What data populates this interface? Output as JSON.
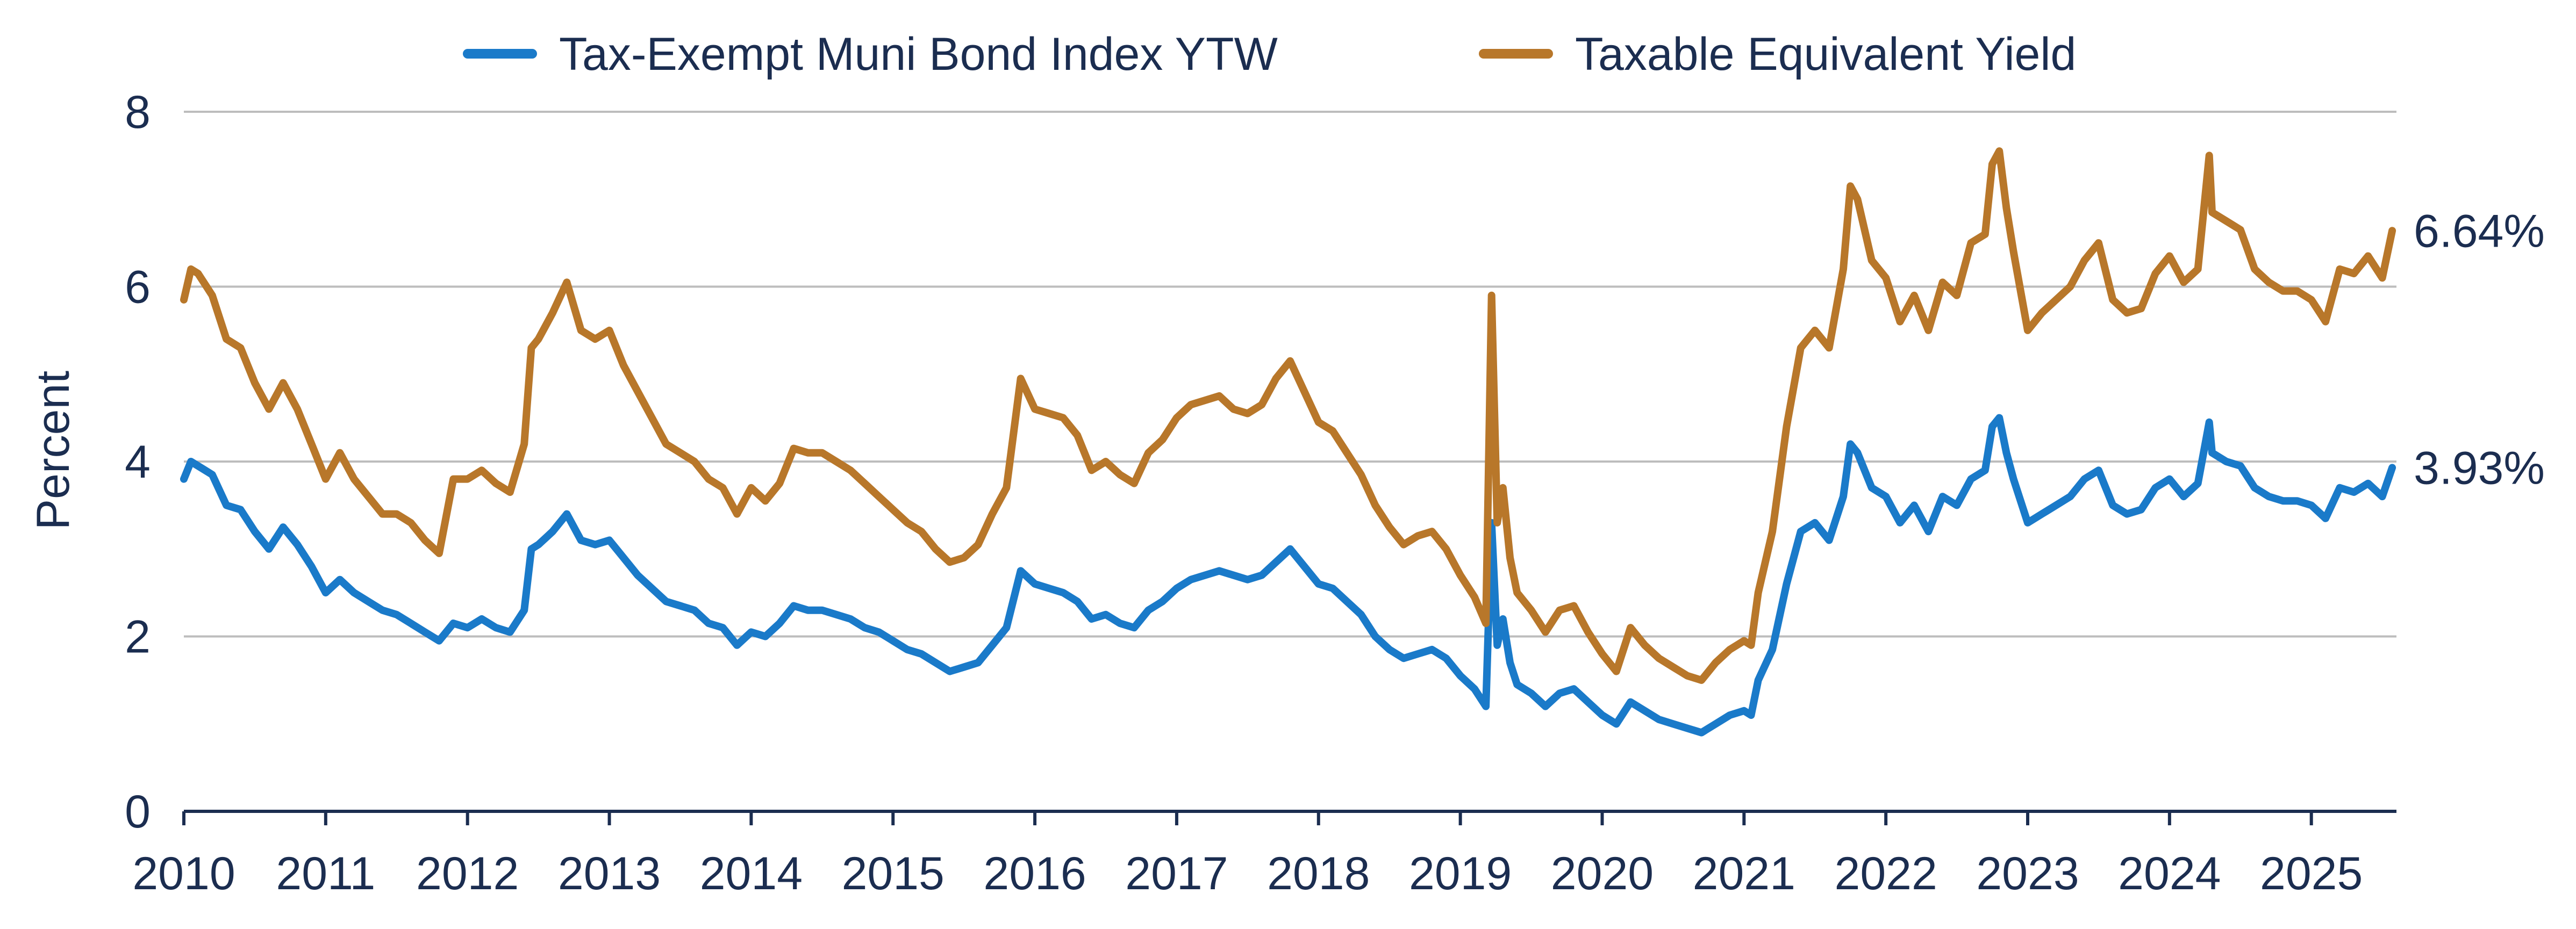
{
  "chart_data": {
    "type": "line",
    "title": "",
    "xlabel": "",
    "ylabel": "Percent",
    "ylim": [
      0,
      8
    ],
    "yticks": [
      "0",
      "2",
      "4",
      "6",
      "8"
    ],
    "xlim": [
      2010,
      2025.6
    ],
    "xticks": [
      "2010",
      "2011",
      "2012",
      "2013",
      "2014",
      "2015",
      "2016",
      "2017",
      "2018",
      "2019",
      "2020",
      "2021",
      "2022",
      "2023",
      "2024",
      "2025"
    ],
    "grid": true,
    "legend_position": "top",
    "series": [
      {
        "name": "Tax-Exempt Muni Bond Index YTW",
        "color": "#1a7ac9",
        "end_label": "3.93%",
        "x": [
          2010.0,
          2010.05,
          2010.1,
          2010.2,
          2010.3,
          2010.4,
          2010.5,
          2010.6,
          2010.7,
          2010.8,
          2010.9,
          2011.0,
          2011.1,
          2011.2,
          2011.3,
          2011.4,
          2011.5,
          2011.6,
          2011.7,
          2011.8,
          2011.9,
          2012.0,
          2012.1,
          2012.2,
          2012.3,
          2012.4,
          2012.45,
          2012.5,
          2012.6,
          2012.7,
          2012.8,
          2012.9,
          2013.0,
          2013.1,
          2013.2,
          2013.3,
          2013.4,
          2013.5,
          2013.6,
          2013.7,
          2013.8,
          2013.9,
          2014.0,
          2014.1,
          2014.2,
          2014.3,
          2014.4,
          2014.5,
          2014.6,
          2014.7,
          2014.8,
          2014.9,
          2015.0,
          2015.1,
          2015.2,
          2015.3,
          2015.4,
          2015.5,
          2015.6,
          2015.7,
          2015.8,
          2015.9,
          2016.0,
          2016.1,
          2016.2,
          2016.3,
          2016.4,
          2016.5,
          2016.6,
          2016.7,
          2016.8,
          2016.9,
          2017.0,
          2017.1,
          2017.2,
          2017.3,
          2017.4,
          2017.5,
          2017.6,
          2017.7,
          2017.8,
          2017.9,
          2018.0,
          2018.1,
          2018.2,
          2018.3,
          2018.4,
          2018.5,
          2018.6,
          2018.7,
          2018.8,
          2018.9,
          2019.0,
          2019.1,
          2019.18,
          2019.22,
          2019.26,
          2019.3,
          2019.35,
          2019.4,
          2019.5,
          2019.6,
          2019.7,
          2019.8,
          2019.9,
          2020.0,
          2020.1,
          2020.2,
          2020.3,
          2020.4,
          2020.5,
          2020.6,
          2020.7,
          2020.8,
          2020.9,
          2021.0,
          2021.05,
          2021.1,
          2021.2,
          2021.3,
          2021.4,
          2021.5,
          2021.6,
          2021.7,
          2021.75,
          2021.8,
          2021.9,
          2022.0,
          2022.1,
          2022.2,
          2022.3,
          2022.4,
          2022.5,
          2022.6,
          2022.7,
          2022.75,
          2022.8,
          2022.85,
          2022.9,
          2023.0,
          2023.1,
          2023.2,
          2023.3,
          2023.4,
          2023.5,
          2023.6,
          2023.7,
          2023.8,
          2023.9,
          2024.0,
          2024.1,
          2024.2,
          2024.28,
          2024.3,
          2024.4,
          2024.5,
          2024.6,
          2024.7,
          2024.8,
          2024.9,
          2025.0,
          2025.1,
          2025.2,
          2025.3,
          2025.4,
          2025.5,
          2025.57
        ],
        "values": [
          3.8,
          4.0,
          3.95,
          3.85,
          3.5,
          3.45,
          3.2,
          3.0,
          3.25,
          3.05,
          2.8,
          2.5,
          2.65,
          2.5,
          2.4,
          2.3,
          2.25,
          2.15,
          2.05,
          1.95,
          2.15,
          2.1,
          2.2,
          2.1,
          2.05,
          2.3,
          3.0,
          3.05,
          3.2,
          3.4,
          3.1,
          3.05,
          3.1,
          2.9,
          2.7,
          2.55,
          2.4,
          2.35,
          2.3,
          2.15,
          2.1,
          1.9,
          2.05,
          2.0,
          2.15,
          2.35,
          2.3,
          2.3,
          2.25,
          2.2,
          2.1,
          2.05,
          1.95,
          1.85,
          1.8,
          1.7,
          1.6,
          1.65,
          1.7,
          1.9,
          2.1,
          2.75,
          2.6,
          2.55,
          2.5,
          2.4,
          2.2,
          2.25,
          2.15,
          2.1,
          2.3,
          2.4,
          2.55,
          2.65,
          2.7,
          2.75,
          2.7,
          2.65,
          2.7,
          2.85,
          3.0,
          2.8,
          2.6,
          2.55,
          2.4,
          2.25,
          2.0,
          1.85,
          1.75,
          1.8,
          1.85,
          1.75,
          1.55,
          1.4,
          1.2,
          3.3,
          1.9,
          2.2,
          1.7,
          1.45,
          1.35,
          1.2,
          1.35,
          1.4,
          1.25,
          1.1,
          1.0,
          1.25,
          1.15,
          1.05,
          1.0,
          0.95,
          0.9,
          1.0,
          1.1,
          1.15,
          1.1,
          1.5,
          1.85,
          2.6,
          3.2,
          3.3,
          3.1,
          3.6,
          4.2,
          4.1,
          3.7,
          3.6,
          3.3,
          3.5,
          3.2,
          3.6,
          3.5,
          3.8,
          3.9,
          4.4,
          4.5,
          4.1,
          3.8,
          3.3,
          3.4,
          3.5,
          3.6,
          3.8,
          3.9,
          3.5,
          3.4,
          3.45,
          3.7,
          3.8,
          3.6,
          3.75,
          4.45,
          4.1,
          4.0,
          3.95,
          3.7,
          3.6,
          3.55,
          3.55,
          3.5,
          3.35,
          3.7,
          3.65,
          3.75,
          3.6,
          3.93
        ]
      },
      {
        "name": "Taxable Equivalent Yield",
        "color": "#b8772a",
        "end_label": "6.64%",
        "x": [
          2010.0,
          2010.05,
          2010.1,
          2010.2,
          2010.3,
          2010.4,
          2010.5,
          2010.6,
          2010.7,
          2010.8,
          2010.9,
          2011.0,
          2011.1,
          2011.2,
          2011.3,
          2011.4,
          2011.5,
          2011.6,
          2011.7,
          2011.8,
          2011.9,
          2012.0,
          2012.1,
          2012.2,
          2012.3,
          2012.4,
          2012.45,
          2012.5,
          2012.6,
          2012.7,
          2012.8,
          2012.9,
          2013.0,
          2013.1,
          2013.2,
          2013.3,
          2013.4,
          2013.5,
          2013.6,
          2013.7,
          2013.8,
          2013.9,
          2014.0,
          2014.1,
          2014.2,
          2014.3,
          2014.4,
          2014.5,
          2014.6,
          2014.7,
          2014.8,
          2014.9,
          2015.0,
          2015.1,
          2015.2,
          2015.3,
          2015.4,
          2015.5,
          2015.6,
          2015.7,
          2015.8,
          2015.9,
          2016.0,
          2016.1,
          2016.2,
          2016.3,
          2016.4,
          2016.5,
          2016.6,
          2016.7,
          2016.8,
          2016.9,
          2017.0,
          2017.1,
          2017.2,
          2017.3,
          2017.4,
          2017.5,
          2017.6,
          2017.7,
          2017.8,
          2017.9,
          2018.0,
          2018.1,
          2018.2,
          2018.3,
          2018.4,
          2018.5,
          2018.6,
          2018.7,
          2018.8,
          2018.9,
          2019.0,
          2019.1,
          2019.18,
          2019.22,
          2019.26,
          2019.3,
          2019.35,
          2019.4,
          2019.5,
          2019.6,
          2019.7,
          2019.8,
          2019.9,
          2020.0,
          2020.1,
          2020.2,
          2020.3,
          2020.4,
          2020.5,
          2020.6,
          2020.7,
          2020.8,
          2020.9,
          2021.0,
          2021.05,
          2021.1,
          2021.2,
          2021.3,
          2021.4,
          2021.5,
          2021.6,
          2021.7,
          2021.75,
          2021.8,
          2021.9,
          2022.0,
          2022.1,
          2022.2,
          2022.3,
          2022.4,
          2022.5,
          2022.6,
          2022.7,
          2022.75,
          2022.8,
          2022.85,
          2022.9,
          2023.0,
          2023.1,
          2023.2,
          2023.3,
          2023.4,
          2023.5,
          2023.6,
          2023.7,
          2023.8,
          2023.9,
          2024.0,
          2024.1,
          2024.2,
          2024.28,
          2024.3,
          2024.4,
          2024.5,
          2024.6,
          2024.7,
          2024.8,
          2024.9,
          2025.0,
          2025.1,
          2025.2,
          2025.3,
          2025.4,
          2025.5,
          2025.57
        ],
        "values": [
          5.85,
          6.2,
          6.15,
          5.9,
          5.4,
          5.3,
          4.9,
          4.6,
          4.9,
          4.6,
          4.2,
          3.8,
          4.1,
          3.8,
          3.6,
          3.4,
          3.4,
          3.3,
          3.1,
          2.95,
          3.8,
          3.8,
          3.9,
          3.75,
          3.65,
          4.2,
          5.3,
          5.4,
          5.7,
          6.05,
          5.5,
          5.4,
          5.5,
          5.1,
          4.8,
          4.5,
          4.2,
          4.1,
          4.0,
          3.8,
          3.7,
          3.4,
          3.7,
          3.55,
          3.75,
          4.15,
          4.1,
          4.1,
          4.0,
          3.9,
          3.75,
          3.6,
          3.45,
          3.3,
          3.2,
          3.0,
          2.85,
          2.9,
          3.05,
          3.4,
          3.7,
          4.95,
          4.6,
          4.55,
          4.5,
          4.3,
          3.9,
          4.0,
          3.85,
          3.75,
          4.1,
          4.25,
          4.5,
          4.65,
          4.7,
          4.75,
          4.6,
          4.55,
          4.65,
          4.95,
          5.15,
          4.8,
          4.45,
          4.35,
          4.1,
          3.85,
          3.5,
          3.25,
          3.05,
          3.15,
          3.2,
          3.0,
          2.7,
          2.45,
          2.15,
          5.9,
          3.3,
          3.7,
          2.9,
          2.5,
          2.3,
          2.05,
          2.3,
          2.35,
          2.05,
          1.8,
          1.6,
          2.1,
          1.9,
          1.75,
          1.65,
          1.55,
          1.5,
          1.7,
          1.85,
          1.95,
          1.9,
          2.5,
          3.2,
          4.4,
          5.3,
          5.5,
          5.3,
          6.2,
          7.15,
          7.0,
          6.3,
          6.1,
          5.6,
          5.9,
          5.5,
          6.05,
          5.9,
          6.5,
          6.6,
          7.4,
          7.55,
          6.9,
          6.4,
          5.5,
          5.7,
          5.85,
          6.0,
          6.3,
          6.5,
          5.85,
          5.7,
          5.75,
          6.15,
          6.35,
          6.05,
          6.2,
          7.5,
          6.85,
          6.75,
          6.65,
          6.2,
          6.05,
          5.95,
          5.95,
          5.85,
          5.6,
          6.2,
          6.15,
          6.35,
          6.1,
          6.64
        ]
      }
    ]
  }
}
